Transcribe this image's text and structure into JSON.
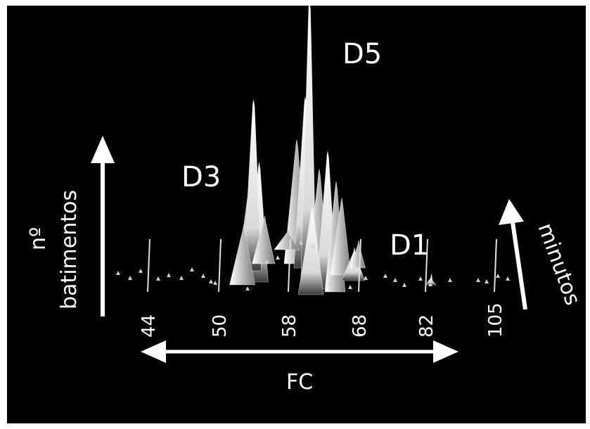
{
  "chart_data": {
    "type": "area",
    "title": "",
    "xlabel": "FC",
    "ylabel": "nº batimentos",
    "zlabel": "minutos",
    "x_tick_labels": [
      "44",
      "50",
      "58",
      "68",
      "82",
      "105"
    ],
    "series": [
      {
        "name": "D3",
        "peak_fc": 54,
        "peak_height": 0.62
      },
      {
        "name": "D5",
        "peak_fc": 61,
        "peak_height": 1.0
      },
      {
        "name": "D1",
        "peak_fc": 84,
        "peak_height": 0.04
      }
    ],
    "colors": {
      "background": "#000000",
      "surface": "#ffffff",
      "text": "#ffffff"
    }
  },
  "labels": {
    "ylabel_line1": "nº",
    "ylabel_line2": "batimentos",
    "zlabel": "minutos",
    "xlabel": "FC",
    "d3": "D3",
    "d5": "D5",
    "d1": "D1"
  }
}
